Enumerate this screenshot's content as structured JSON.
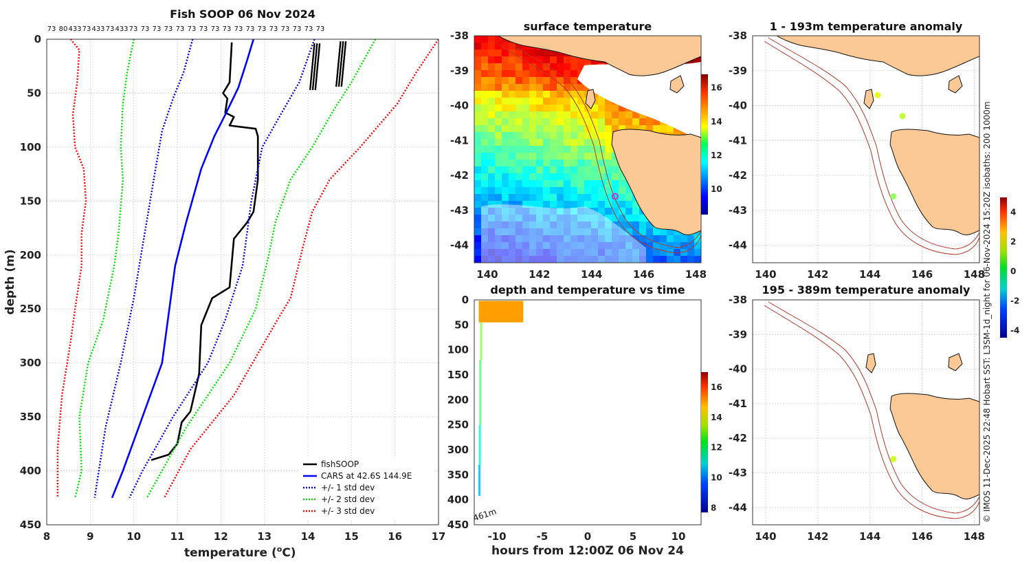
{
  "chart_data": [
    {
      "type": "line",
      "title": "Fish SOOP 06 Nov 2024",
      "xlabel": "temperature (",
      "xlabel_unit_sup": "o",
      "xlabel_unit": "C)",
      "ylabel": "depth (m)",
      "xlim": [
        8,
        17
      ],
      "ylim": [
        0,
        450
      ],
      "x_ticks": [
        "8",
        "9",
        "10",
        "11",
        "12",
        "13",
        "14",
        "15",
        "16",
        "17"
      ],
      "y_ticks": [
        "0",
        "50",
        "100",
        "150",
        "200",
        "250",
        "300",
        "350",
        "400",
        "450"
      ],
      "top_counts": [
        "73",
        "80",
        "433",
        "73",
        "433",
        "73",
        "433",
        "73",
        "73",
        "73",
        "73",
        "73",
        "73",
        "73",
        "73",
        "73",
        "73",
        "73",
        "73",
        "73",
        "73",
        "73",
        "73",
        "73"
      ],
      "legend": [
        "fishSOOP",
        "CARS at 42.6S 144.9E",
        "+/- 1 std dev",
        "+/- 2 std dev",
        "+/- 3 std dev"
      ],
      "series": [
        {
          "name": "fishSOOP",
          "color": "#000000",
          "style": "solid",
          "points": [
            [
              12.25,
              3
            ],
            [
              12.2,
              40
            ],
            [
              12.05,
              50
            ],
            [
              12.15,
              55
            ],
            [
              12.1,
              68
            ],
            [
              12.3,
              72
            ],
            [
              12.2,
              80
            ],
            [
              12.8,
              83
            ],
            [
              12.85,
              90
            ],
            [
              12.85,
              130
            ],
            [
              12.75,
              160
            ],
            [
              12.6,
              170
            ],
            [
              12.3,
              185
            ],
            [
              12.2,
              230
            ],
            [
              11.8,
              240
            ],
            [
              11.55,
              265
            ],
            [
              11.5,
              310
            ],
            [
              11.3,
              345
            ],
            [
              11.1,
              355
            ],
            [
              11.0,
              375
            ],
            [
              10.8,
              385
            ],
            [
              10.4,
              390
            ]
          ]
        },
        {
          "name": "CARS at 42.6S 144.9E",
          "color": "#0000ff",
          "style": "solid",
          "points": [
            [
              12.75,
              0
            ],
            [
              12.6,
              20
            ],
            [
              12.4,
              45
            ],
            [
              12.1,
              70
            ],
            [
              11.85,
              90
            ],
            [
              11.55,
              120
            ],
            [
              11.2,
              170
            ],
            [
              10.95,
              210
            ],
            [
              10.65,
              300
            ],
            [
              10.2,
              350
            ],
            [
              9.75,
              400
            ],
            [
              9.5,
              425
            ]
          ]
        },
        {
          "name": "+/- 1 std dev",
          "color": "#0000dd",
          "style": "dotted",
          "points": [
            [
              14.15,
              0
            ],
            [
              13.8,
              40
            ],
            [
              13.3,
              75
            ],
            [
              12.95,
              100
            ],
            [
              12.7,
              150
            ],
            [
              12.5,
              210
            ],
            [
              12.1,
              260
            ],
            [
              11.7,
              300
            ],
            [
              10.9,
              350
            ],
            [
              10.2,
              400
            ],
            [
              9.9,
              425
            ]
          ]
        },
        {
          "name": "+/- 1 std dev",
          "color": "#0000dd",
          "style": "dotted",
          "points": [
            [
              11.35,
              0
            ],
            [
              11.15,
              30
            ],
            [
              10.9,
              55
            ],
            [
              10.65,
              85
            ],
            [
              10.5,
              120
            ],
            [
              10.25,
              180
            ],
            [
              10.0,
              240
            ],
            [
              9.7,
              300
            ],
            [
              9.35,
              360
            ],
            [
              9.1,
              425
            ]
          ]
        },
        {
          "name": "+/- 2 std dev",
          "color": "#00dd00",
          "style": "dotted",
          "points": [
            [
              15.55,
              0
            ],
            [
              15.0,
              40
            ],
            [
              14.6,
              65
            ],
            [
              14.1,
              100
            ],
            [
              13.6,
              130
            ],
            [
              13.25,
              170
            ],
            [
              13.1,
              200
            ],
            [
              12.8,
              250
            ],
            [
              12.2,
              300
            ],
            [
              11.2,
              360
            ],
            [
              10.3,
              425
            ]
          ]
        },
        {
          "name": "+/- 2 std dev",
          "color": "#00dd00",
          "style": "dotted",
          "points": [
            [
              10.0,
              0
            ],
            [
              9.85,
              30
            ],
            [
              9.75,
              60
            ],
            [
              9.7,
              100
            ],
            [
              9.75,
              130
            ],
            [
              9.65,
              180
            ],
            [
              9.55,
              210
            ],
            [
              9.3,
              260
            ],
            [
              8.95,
              300
            ],
            [
              8.75,
              350
            ],
            [
              8.8,
              400
            ],
            [
              8.65,
              425
            ]
          ]
        },
        {
          "name": "+/- 3 std dev",
          "color": "#ff0000",
          "style": "dotted",
          "points": [
            [
              17.0,
              0
            ],
            [
              16.5,
              30
            ],
            [
              16.05,
              60
            ],
            [
              15.2,
              100
            ],
            [
              14.5,
              130
            ],
            [
              14.1,
              160
            ],
            [
              13.9,
              190
            ],
            [
              13.6,
              240
            ],
            [
              13.3,
              260
            ],
            [
              12.3,
              330
            ],
            [
              11.3,
              380
            ],
            [
              10.7,
              425
            ]
          ]
        },
        {
          "name": "+/- 3 std dev",
          "color": "#ff0000",
          "style": "dotted",
          "points": [
            [
              8.55,
              0
            ],
            [
              8.75,
              10
            ],
            [
              8.7,
              40
            ],
            [
              8.6,
              70
            ],
            [
              8.65,
              100
            ],
            [
              8.85,
              120
            ],
            [
              8.9,
              150
            ],
            [
              8.8,
              180
            ],
            [
              8.8,
              210
            ],
            [
              8.65,
              250
            ],
            [
              8.55,
              280
            ],
            [
              8.35,
              330
            ],
            [
              8.25,
              380
            ],
            [
              8.25,
              425
            ]
          ]
        }
      ]
    },
    {
      "type": "heatmap",
      "title": "surface temperature",
      "xlim": [
        139.5,
        148.2
      ],
      "ylim": [
        -44.5,
        -38
      ],
      "x_ticks": [
        "140",
        "142",
        "144",
        "146",
        "148"
      ],
      "y_ticks": [
        "-38",
        "-39",
        "-40",
        "-41",
        "-42",
        "-43",
        "-44"
      ],
      "colorbar_ticks": [
        "10",
        "12",
        "14",
        "16"
      ],
      "colorbar_range": [
        8.5,
        16.8
      ],
      "marker": {
        "lon": 144.9,
        "lat": -42.6,
        "color": "#cc33cc"
      }
    },
    {
      "type": "scatter",
      "title": "depth and temperature vs time",
      "xlabel": "hours from 12:00Z 06 Nov 24",
      "xlim": [
        -12.5,
        12.5
      ],
      "ylim": [
        0,
        450
      ],
      "x_ticks": [
        "-10",
        "-5",
        "0",
        "5",
        "10"
      ],
      "y_ticks": [
        "0",
        "50",
        "100",
        "150",
        "200",
        "250",
        "300",
        "350",
        "400",
        "450"
      ],
      "colorbar_ticks": [
        "8",
        "10",
        "12",
        "14",
        "16"
      ],
      "colorbar_range": [
        7.7,
        17
      ],
      "annotation": "461m",
      "points": [
        {
          "hours_from": -12.0,
          "hours_to": -7.1,
          "depth_from": 2,
          "depth_to": 45,
          "temperature": 14.4
        },
        {
          "hours_from": -11.85,
          "hours_to": -11.7,
          "depth_from": 45,
          "depth_to": 120,
          "temperature": 12.6
        },
        {
          "hours_from": -11.95,
          "hours_to": -11.8,
          "depth_from": 120,
          "depth_to": 250,
          "temperature": 12.2
        },
        {
          "hours_from": -12.0,
          "hours_to": -11.85,
          "depth_from": 250,
          "depth_to": 330,
          "temperature": 11.6
        },
        {
          "hours_from": -12.05,
          "hours_to": -11.9,
          "depth_from": 330,
          "depth_to": 392,
          "temperature": 10.8
        }
      ]
    },
    {
      "type": "scatter",
      "title": "1 - 193m temperature anomaly",
      "xlim": [
        139.5,
        148.2
      ],
      "ylim": [
        -44.5,
        -38
      ],
      "x_ticks": [
        "140",
        "142",
        "144",
        "146",
        "148"
      ],
      "y_ticks": [
        "-38",
        "-39",
        "-40",
        "-41",
        "-42",
        "-43",
        "-44"
      ],
      "colorbar_ticks": [
        "-4",
        "-2",
        "0",
        "2",
        "4"
      ],
      "colorbar_range": [
        -4.5,
        5
      ],
      "points": [
        {
          "lon": 144.3,
          "lat": -39.7,
          "anomaly": 1.2
        },
        {
          "lon": 145.25,
          "lat": -40.3,
          "anomaly": 0.9
        },
        {
          "lon": 144.9,
          "lat": -42.6,
          "anomaly": 0.5
        }
      ]
    },
    {
      "type": "scatter",
      "title": "195 - 389m temperature anomaly",
      "xlim": [
        139.5,
        148.2
      ],
      "ylim": [
        -44.5,
        -38
      ],
      "x_ticks": [
        "140",
        "142",
        "144",
        "146",
        "148"
      ],
      "y_ticks": [
        "-38",
        "-39",
        "-40",
        "-41",
        "-42",
        "-43",
        "-44"
      ],
      "points": [
        {
          "lon": 144.9,
          "lat": -42.6,
          "anomaly": 1.0
        }
      ]
    }
  ],
  "credit": "© IMOS 11-Dec-2025 22:48 Hobart SST: L3SM-1d_night for 06-Nov-2024 15:20Z isobaths: 200  1000m",
  "colors": {
    "land": "#fbc995",
    "isobath": "#b23a2a",
    "frame": "#333333"
  }
}
